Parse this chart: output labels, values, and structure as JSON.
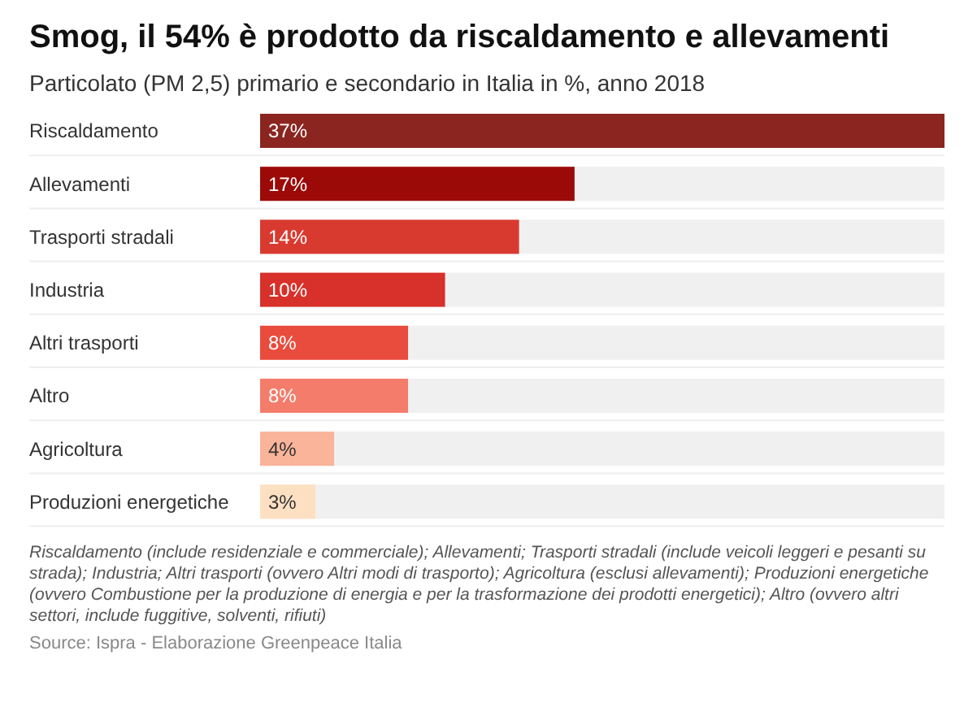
{
  "chart_data": {
    "type": "bar",
    "orientation": "horizontal",
    "title": "Smog, il 54% è prodotto da riscaldamento e allevamenti",
    "subtitle": "Particolato (PM 2,5) primario e secondario in Italia in %, anno 2018",
    "categories": [
      "Riscaldamento",
      "Allevamenti",
      "Trasporti stradali",
      "Industria",
      "Altri trasporti",
      "Altro",
      "Agricoltura",
      "Produzioni energetiche"
    ],
    "values": [
      37,
      17,
      14,
      10,
      8,
      8,
      4,
      3
    ],
    "colors": [
      "#8b2520",
      "#9c0a08",
      "#d93a30",
      "#d8302a",
      "#e94b3c",
      "#f47c6a",
      "#f9b49a",
      "#fde0c2"
    ],
    "value_labels": [
      "37%",
      "17%",
      "14%",
      "10%",
      "8%",
      "8%",
      "4%",
      "3%"
    ],
    "annotations": [
      "Riscaldamento (include residenziale e commerciale); Allevamenti; Trasporti stradali (include veicoli leggeri e pesanti su strada); Industria; Altri trasporti (ovvero Altri modi di trasporto); Agricoltura (esclusi allevamenti); Produzioni energetiche (ovvero Combustione per la produzione di energia e per la trasformazione dei prodotti energetici); Altro (ovvero altri settori, include fuggitive, solventi, rifiuti)",
      "Source: Ispra - Elaborazione Greenpeace Italia"
    ]
  }
}
